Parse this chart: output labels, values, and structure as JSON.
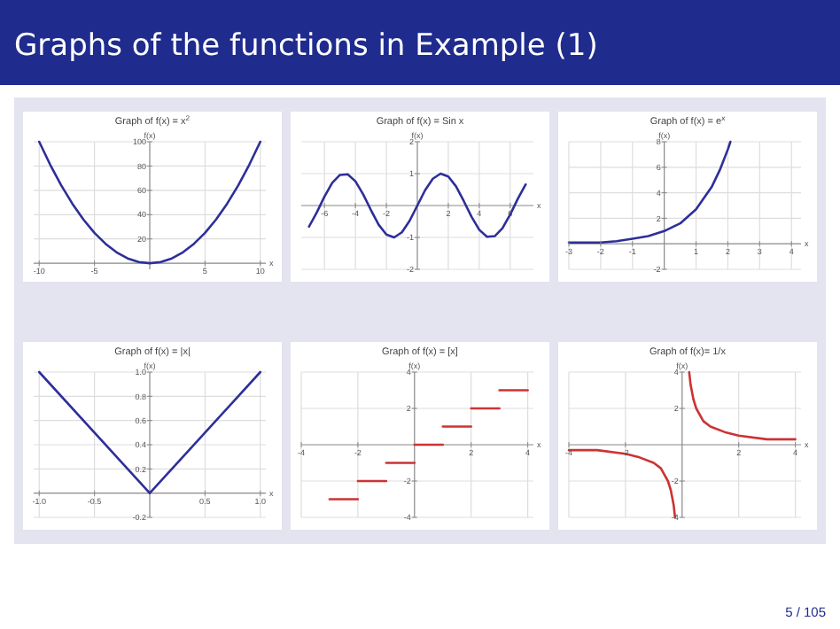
{
  "chart_data": [
    {
      "type": "other",
      "title": "Graphs of the functions in Example (1)",
      "annotations": [
        "5 / 105"
      ]
    },
    {
      "type": "line",
      "title": "Graph of f(x) = x$^{2}$",
      "xlabel": "x",
      "ylabel": "f(x)",
      "xlim": [
        -10.5,
        10.5
      ],
      "ylim": [
        -5,
        100
      ],
      "xticks": [
        -10,
        -5,
        5,
        10
      ],
      "yticks": [
        20,
        40,
        60,
        80,
        100
      ],
      "grid": true,
      "series": [
        {
          "color": "#2e2e9a",
          "x": [
            -10,
            -9,
            -8,
            -7,
            -6,
            -5,
            -4,
            -3,
            -2,
            -1,
            0,
            1,
            2,
            3,
            4,
            5,
            6,
            7,
            8,
            9,
            10
          ],
          "values": [
            100,
            81,
            64,
            49,
            36,
            25,
            16,
            9,
            4,
            1,
            0,
            1,
            4,
            9,
            16,
            25,
            36,
            49,
            64,
            81,
            100
          ]
        }
      ]
    },
    {
      "type": "line",
      "title": "Graph of f(x) = Sin x",
      "xlabel": "x",
      "ylabel": "f(x)",
      "xlim": [
        -7.5,
        7.5
      ],
      "ylim": [
        -2,
        2
      ],
      "xticks": [
        -6,
        -4,
        -2,
        2,
        4,
        6
      ],
      "yticks": [
        -2,
        -1,
        1,
        2
      ],
      "grid": true,
      "series": [
        {
          "color": "#2e2e9a",
          "x": [
            -7,
            -6.5,
            -6,
            -5.5,
            -5,
            -4.5,
            -4,
            -3.5,
            -3,
            -2.5,
            -2,
            -1.5,
            -1,
            -0.5,
            0,
            0.5,
            1,
            1.5,
            2,
            2.5,
            3,
            3.5,
            4,
            4.5,
            5,
            5.5,
            6,
            6.5,
            7
          ],
          "values": [
            -0.66,
            -0.22,
            0.28,
            0.71,
            0.96,
            0.98,
            0.76,
            0.35,
            -0.14,
            -0.6,
            -0.91,
            -1,
            -0.84,
            -0.48,
            0,
            0.48,
            0.84,
            1,
            0.91,
            0.6,
            0.14,
            -0.35,
            -0.76,
            -0.98,
            -0.96,
            -0.71,
            -0.28,
            0.22,
            0.66
          ]
        }
      ]
    },
    {
      "type": "line",
      "title": "Graph of f(x) = e$^{x}$",
      "xlabel": "x",
      "ylabel": "f(x)",
      "xlim": [
        -3,
        4.3
      ],
      "ylim": [
        -2,
        8
      ],
      "xticks": [
        -3,
        -2,
        -1,
        1,
        2,
        3,
        4
      ],
      "yticks": [
        -2,
        2,
        4,
        6,
        8
      ],
      "grid": true,
      "series": [
        {
          "color": "#2e2e9a",
          "x": [
            -3,
            -2.5,
            -2,
            -1.5,
            -1,
            -0.5,
            0,
            0.5,
            1,
            1.5,
            1.75,
            2,
            2.08
          ],
          "values": [
            0.1,
            0.1,
            0.1,
            0.2,
            0.4,
            0.6,
            1,
            1.6,
            2.7,
            4.5,
            5.8,
            7.4,
            8
          ]
        }
      ]
    },
    {
      "type": "line",
      "title": "Graph of f(x) = |x|",
      "xlabel": "x",
      "ylabel": "f(x)",
      "xlim": [
        -1.05,
        1.05
      ],
      "ylim": [
        -0.2,
        1
      ],
      "xticks": [
        {
          "value": -1,
          "label": "-1.0"
        },
        -0.5,
        0.5,
        {
          "value": 1,
          "label": "1.0"
        }
      ],
      "yticks": [
        -0.2,
        0.2,
        0.4,
        0.6,
        0.8,
        {
          "value": 1,
          "label": "1.0"
        }
      ],
      "grid": true,
      "series": [
        {
          "color": "#2e2e9a",
          "x": [
            -1,
            0,
            1
          ],
          "values": [
            1,
            0,
            1
          ]
        }
      ]
    },
    {
      "type": "line",
      "title": "Graph of f(x) = [x]",
      "xlabel": "x",
      "ylabel": "f(x)",
      "xlim": [
        -4,
        4.2
      ],
      "ylim": [
        -4,
        4
      ],
      "xticks": [
        -4,
        -2,
        2,
        4
      ],
      "yticks": [
        -4,
        -2,
        2,
        4
      ],
      "grid": true,
      "series": [
        {
          "color": "#cc3333",
          "x": [
            -3,
            -2
          ],
          "values": [
            -3,
            -3
          ]
        },
        {
          "color": "#cc3333",
          "x": [
            -2,
            -1
          ],
          "values": [
            -2,
            -2
          ]
        },
        {
          "color": "#cc3333",
          "x": [
            -1,
            0
          ],
          "values": [
            -1,
            -1
          ]
        },
        {
          "color": "#cc3333",
          "x": [
            0,
            1
          ],
          "values": [
            0,
            0
          ]
        },
        {
          "color": "#cc3333",
          "x": [
            1,
            2
          ],
          "values": [
            1,
            1
          ]
        },
        {
          "color": "#cc3333",
          "x": [
            2,
            3
          ],
          "values": [
            2,
            2
          ]
        },
        {
          "color": "#cc3333",
          "x": [
            3,
            4
          ],
          "values": [
            3,
            3
          ]
        }
      ]
    },
    {
      "type": "line",
      "title": "Graph of f(x)= 1/x",
      "xlabel": "x",
      "ylabel": "f(x)",
      "xlim": [
        -4,
        4.2
      ],
      "ylim": [
        -4,
        4
      ],
      "xticks": [
        -4,
        -2,
        2,
        4
      ],
      "yticks": [
        -4,
        -2,
        2,
        4
      ],
      "grid": true,
      "series": [
        {
          "color": "#cc3333",
          "x": [
            -4,
            -3,
            -2,
            -1.5,
            -1,
            -0.75,
            -0.5,
            -0.4,
            -0.3,
            -0.25
          ],
          "values": [
            -0.3,
            -0.3,
            -0.5,
            -0.7,
            -1,
            -1.3,
            -2,
            -2.5,
            -3.3,
            -4
          ]
        },
        {
          "color": "#cc3333",
          "x": [
            0.25,
            0.3,
            0.4,
            0.5,
            0.75,
            1,
            1.5,
            2,
            3,
            4
          ],
          "values": [
            4,
            3.3,
            2.5,
            2,
            1.3,
            1,
            0.7,
            0.5,
            0.3,
            0.3
          ]
        }
      ]
    }
  ]
}
